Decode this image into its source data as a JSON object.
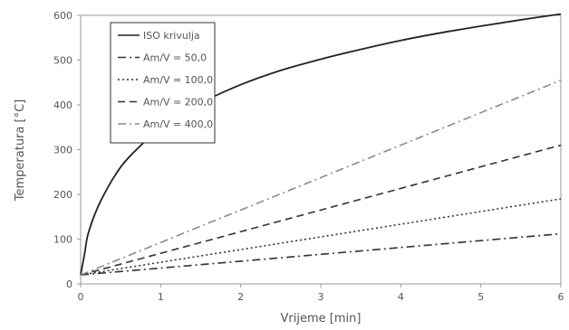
{
  "chart_data": {
    "type": "line",
    "xlabel": "Vrijeme [min]",
    "ylabel": "Temperatura [°C]",
    "xlim": [
      0,
      6
    ],
    "ylim": [
      0,
      600
    ],
    "xticks": [
      "0",
      "1",
      "2",
      "3",
      "4",
      "5",
      "6"
    ],
    "yticks": [
      "0",
      "100",
      "200",
      "300",
      "400",
      "500",
      "600"
    ],
    "grid": false,
    "legend_position": "top-left",
    "series": [
      {
        "name": "ISO krivulja",
        "color": "#222222",
        "dash": "solid",
        "x": [
          0,
          0.05,
          0.1,
          0.25,
          0.5,
          0.75,
          1,
          1.5,
          2,
          2.5,
          3,
          3.5,
          4,
          4.5,
          5,
          5.5,
          6
        ],
        "y": [
          20,
          68,
          116,
          185,
          261,
          309,
          349,
          404,
          445,
          477,
          502,
          524,
          544,
          561,
          576,
          590,
          603
        ]
      },
      {
        "name": "Am/V = 50,0",
        "color": "#333333",
        "dash": "dash-dot",
        "x": [
          0,
          6
        ],
        "y": [
          20,
          112
        ]
      },
      {
        "name": "Am/V = 100,0",
        "color": "#333333",
        "dash": "dotted",
        "x": [
          0,
          6
        ],
        "y": [
          20,
          190
        ]
      },
      {
        "name": "Am/V = 200,0",
        "color": "#333333",
        "dash": "dashed",
        "x": [
          0,
          6
        ],
        "y": [
          20,
          310
        ]
      },
      {
        "name": "Am/V = 400,0",
        "color": "#8a8a8a",
        "dash": "dash-dot",
        "x": [
          0,
          6
        ],
        "y": [
          20,
          455
        ]
      }
    ]
  }
}
